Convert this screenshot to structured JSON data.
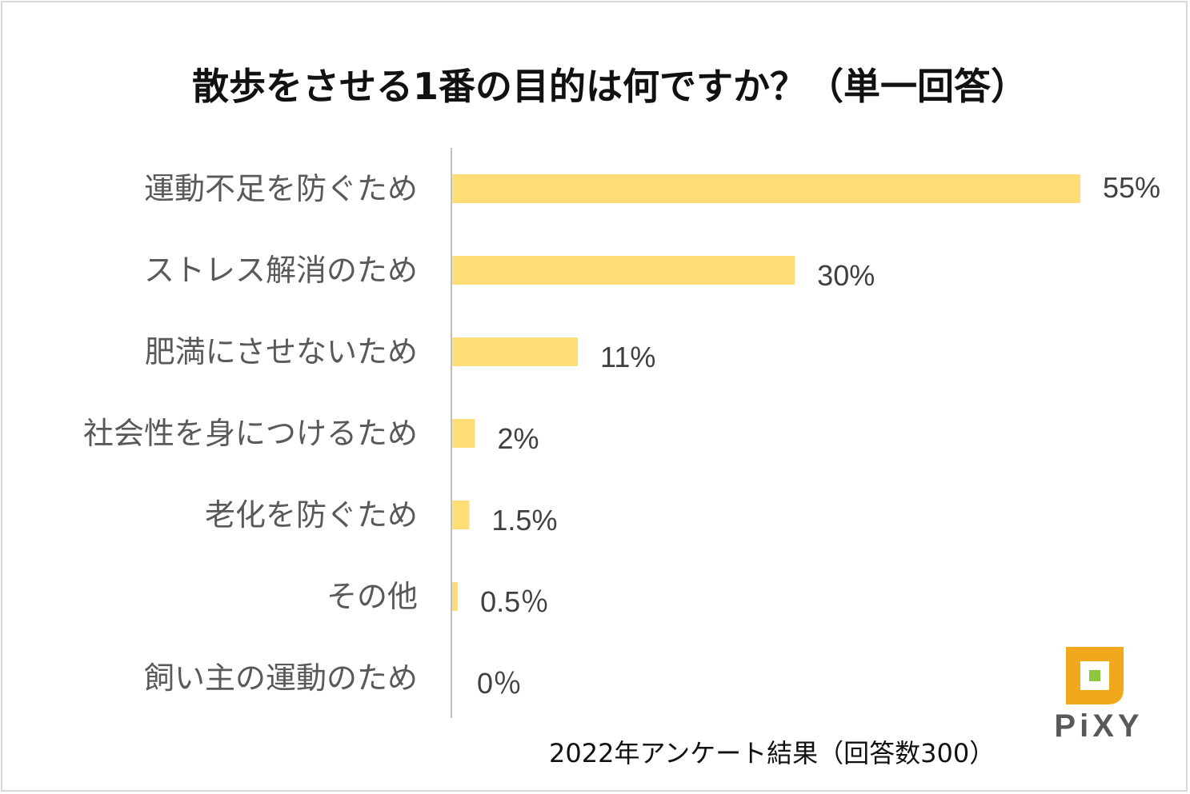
{
  "title": "散歩をさせる1番の目的は何ですか？（単一回答）",
  "footnote": "2022年アンケート結果（回答数300）",
  "logo": {
    "text": "PiXY",
    "primary_color": "#F2A81D",
    "accent_color": "#8DC63F"
  },
  "colors": {
    "bar": "#FFDF75",
    "axis": "#BFBFBF"
  },
  "chart_data": {
    "type": "bar",
    "orientation": "horizontal",
    "title": "散歩をさせる1番の目的は何ですか？（単一回答）",
    "xlabel": "",
    "ylabel": "",
    "xlim": [
      0,
      55
    ],
    "grid": false,
    "categories": [
      "運動不足を防ぐため",
      "ストレス解消のため",
      "肥満にさせないため",
      "社会性を身につけるため",
      "老化を防ぐため",
      "その他",
      "飼い主の運動のため"
    ],
    "values": [
      55,
      30,
      11,
      2,
      1.5,
      0.5,
      0
    ],
    "value_labels": [
      "55%",
      "30%",
      "11%",
      "2%",
      "1.5%",
      "0.5％",
      "0％"
    ]
  }
}
